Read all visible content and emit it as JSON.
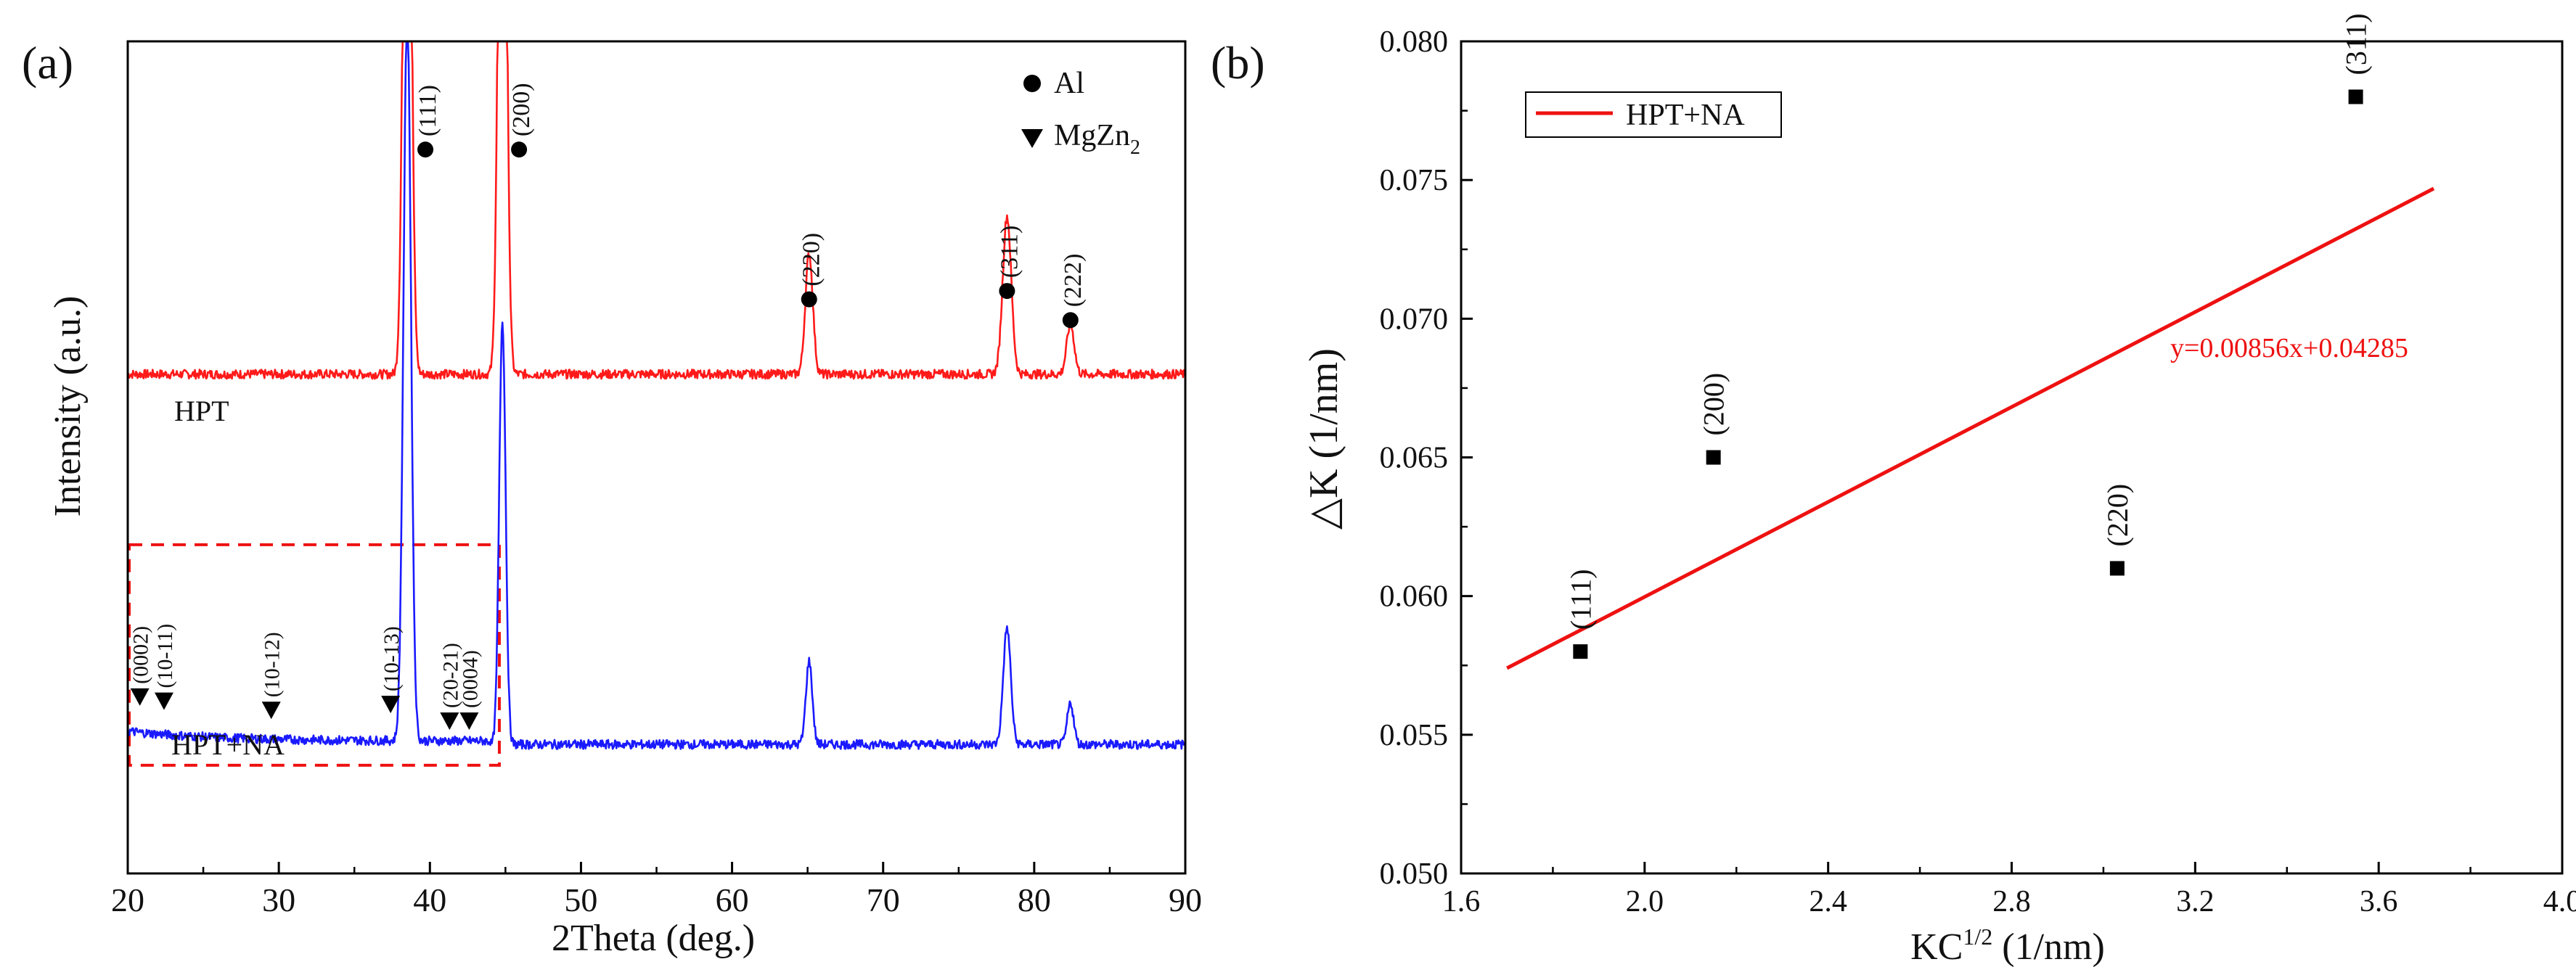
{
  "colors": {
    "hpt": "#ff1a1a",
    "hptna": "#1a1aff",
    "fit": "#ee1111",
    "fit_eq": "#ee1111",
    "point": "#000000",
    "dashbox": "#ee1111"
  },
  "chart_data": [
    {
      "type": "line",
      "panel_label": "(a)",
      "xlabel": "2Theta (deg.)",
      "ylabel": "Intensity (a.u.)",
      "xlim": [
        20,
        90
      ],
      "xticks": [
        20,
        30,
        40,
        50,
        60,
        70,
        80,
        90
      ],
      "xtick_labels": [
        "20",
        "30",
        "40",
        "50",
        "60",
        "70",
        "80",
        "90"
      ],
      "y_units": "arbitrary (no tick labels)",
      "grid": false,
      "series": [
        {
          "name": "HPT",
          "color": "#ff1a1a",
          "baseline": 0.6,
          "peaks": [
            {
              "x": 38.5,
              "height": 1.0,
              "width": 0.35
            },
            {
              "x": 44.8,
              "height": 1.0,
              "width": 0.35
            },
            {
              "x": 65.1,
              "height": 0.145,
              "width": 0.35
            },
            {
              "x": 78.2,
              "height": 0.19,
              "width": 0.4
            },
            {
              "x": 82.4,
              "height": 0.06,
              "width": 0.35
            }
          ]
        },
        {
          "name": "HPT+NA",
          "color": "#1a1aff",
          "baseline": 0.155,
          "peaks": [
            {
              "x": 38.5,
              "height": 0.88,
              "width": 0.35
            },
            {
              "x": 44.8,
              "height": 0.51,
              "width": 0.3
            },
            {
              "x": 65.1,
              "height": 0.1,
              "width": 0.3
            },
            {
              "x": 78.2,
              "height": 0.14,
              "width": 0.35
            },
            {
              "x": 82.4,
              "height": 0.05,
              "width": 0.3
            }
          ]
        }
      ],
      "series_labels": [
        "HPT",
        "HPT+NA"
      ],
      "legend": [
        {
          "marker": "circle",
          "label": "Al"
        },
        {
          "marker": "triangle-down",
          "label": "MgZn2",
          "label_main": "MgZn",
          "label_sub": "2"
        }
      ],
      "al_annotations": [
        {
          "label": "(111)",
          "x": 39.7
        },
        {
          "label": "(200)",
          "x": 45.9
        },
        {
          "label": "(220)",
          "x": 65.1
        },
        {
          "label": "(311)",
          "x": 78.2
        },
        {
          "label": "(222)",
          "x": 82.4
        }
      ],
      "mgzn2_annotations": [
        {
          "label": "(0002)",
          "x": 20.8
        },
        {
          "label": "(10-11)",
          "x": 22.4
        },
        {
          "label": "(10-12)",
          "x": 29.5
        },
        {
          "label": "(10-13)",
          "x": 37.4
        },
        {
          "label": "(20-21)",
          "x": 41.3
        },
        {
          "label": "(0004)",
          "x": 42.6
        }
      ],
      "highlight_box": {
        "x_range": [
          20,
          44.5
        ]
      }
    },
    {
      "type": "scatter",
      "panel_label": "(b)",
      "xlabel": "KC1/2 (1/nm)",
      "xlabel_main": "KC",
      "xlabel_sup": "1/2",
      "xlabel_unit": " (1/nm)",
      "ylabel": "△K (1/nm)",
      "xlim": [
        1.6,
        4.0
      ],
      "ylim": [
        0.05,
        0.08
      ],
      "xticks": [
        1.6,
        2.0,
        2.4,
        2.8,
        3.2,
        3.6,
        4.0
      ],
      "xtick_labels": [
        "1.6",
        "2.0",
        "2.4",
        "2.8",
        "3.2",
        "3.6",
        "4.0"
      ],
      "yticks": [
        0.05,
        0.055,
        0.06,
        0.065,
        0.07,
        0.075,
        0.08
      ],
      "ytick_labels": [
        "0.050",
        "0.055",
        "0.060",
        "0.065",
        "0.070",
        "0.075",
        "0.080"
      ],
      "grid": false,
      "points": [
        {
          "label": "(111)",
          "x": 1.86,
          "y": 0.058
        },
        {
          "label": "(200)",
          "x": 2.15,
          "y": 0.065
        },
        {
          "label": "(220)",
          "x": 3.03,
          "y": 0.061
        },
        {
          "label": "(311)",
          "x": 3.55,
          "y": 0.078
        }
      ],
      "fit": {
        "name": "HPT+NA",
        "slope": 0.00856,
        "intercept": 0.04285,
        "x_range": [
          1.7,
          3.72
        ],
        "equation": "y=0.00856x+0.04285"
      },
      "legend": {
        "label": "HPT+NA",
        "position": "top-left"
      }
    }
  ]
}
